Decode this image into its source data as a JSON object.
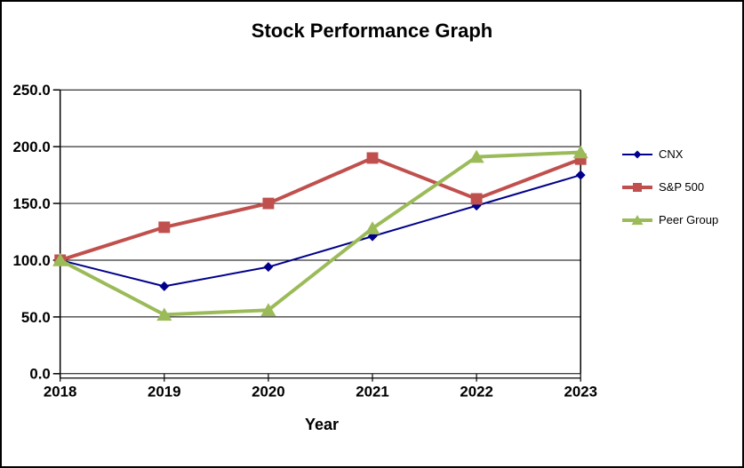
{
  "window": {
    "background": "#FFFFFF",
    "border_color": "#000000"
  },
  "chart_data": {
    "type": "line",
    "title": "Stock Performance Graph",
    "xlabel": "Year",
    "ylabel": "",
    "categories": [
      "2018",
      "2019",
      "2020",
      "2021",
      "2022",
      "2023"
    ],
    "series": [
      {
        "name": "CNX",
        "color": "#00008B",
        "marker": "diamond",
        "line_width": 2,
        "values": [
          100,
          77,
          94,
          121,
          148,
          175
        ]
      },
      {
        "name": "S&P 500",
        "color": "#C0504D",
        "marker": "square",
        "line_width": 4,
        "values": [
          100,
          129,
          150,
          190,
          154,
          189
        ]
      },
      {
        "name": "Peer Group",
        "color": "#9BBB59",
        "marker": "triangle",
        "line_width": 4,
        "values": [
          100,
          52,
          56,
          128,
          191,
          195
        ]
      }
    ],
    "ylim": [
      0,
      250
    ],
    "ytick_interval": 50,
    "ytick_labels": [
      "0.0",
      "50.0",
      "100.0",
      "150.0",
      "200.0",
      "250.0"
    ],
    "xtick_labels": [
      "2018",
      "2019",
      "2020",
      "2021",
      "2022",
      "2023"
    ],
    "grid": "horizontal-only",
    "gridline_color": "#000000",
    "axis_color": "#000000",
    "legend_position": "right"
  }
}
